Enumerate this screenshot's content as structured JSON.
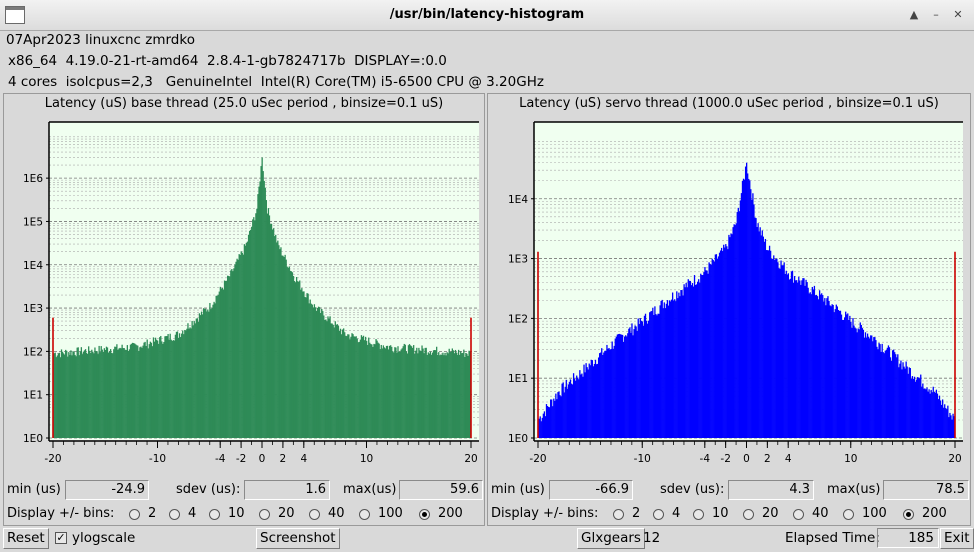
{
  "window": {
    "title": "/usr/bin/latency-histogram"
  },
  "info": {
    "line1": "07Apr2023 linuxcnc zmrdko",
    "line2": "x86_64  4.19.0-21-rt-amd64  2.8.4-1-gb7824717b  DISPLAY=:0.0",
    "line3": "4 cores  isolcpus=2,3   GenuineIntel  Intel(R) Core(TM) i5-6500 CPU @ 3.20GHz"
  },
  "left": {
    "title": "Latency (uS) base thread (25.0 uSec period , binsize=0.1 uS)",
    "min_label": "min (us)",
    "min": "-24.9",
    "sdev_label": "sdev (us):",
    "sdev": "1.6",
    "max_label": "max(us)",
    "max": "59.6",
    "bins_label": "Display +/- bins:",
    "bins_options": [
      "2",
      "4",
      "10",
      "20",
      "40",
      "100",
      "200"
    ],
    "bins_selected": "200"
  },
  "right": {
    "title": "Latency (uS) servo thread (1000.0 uSec period , binsize=0.1 uS)",
    "min_label": "min (us)",
    "min": "-66.9",
    "sdev_label": "sdev (us):",
    "sdev": "4.3",
    "max_label": "max(us)",
    "max": "78.5",
    "bins_label": "Display +/- bins:",
    "bins_options": [
      "2",
      "4",
      "10",
      "20",
      "40",
      "100",
      "200"
    ],
    "bins_selected": "200"
  },
  "bottom": {
    "reset": "Reset",
    "ylogscale": "ylogscale",
    "ylogscale_checked": true,
    "screenshot": "Screenshot",
    "glxgears": "Glxgears",
    "glxgears_count": "12",
    "elapsed_label": "Elapsed Time:",
    "elapsed": "185",
    "exit": "Exit"
  },
  "chart_data": [
    {
      "type": "bar",
      "title": "Latency (uS) base thread (25.0 uSec period , binsize=0.1 uS)",
      "color": "#2e8b57",
      "ylog": true,
      "yticks": [
        "1E0",
        "1E1",
        "1E2",
        "1E3",
        "1E4",
        "1E5",
        "1E6"
      ],
      "xticks": [
        "-20",
        "-10",
        "-4",
        "-2",
        "0",
        "2",
        "4",
        "10",
        "20"
      ],
      "xlim": [
        -20,
        20
      ],
      "ylim": [
        1,
        3000000
      ],
      "peak_x": 0,
      "peak_y": 3000000,
      "edge_left_y": 600,
      "edge_right_y": 600,
      "profile": [
        [
          -20,
          90
        ],
        [
          -12,
          130
        ],
        [
          -8,
          250
        ],
        [
          -5,
          1100
        ],
        [
          -3,
          6000
        ],
        [
          -1.5,
          30000
        ],
        [
          -0.5,
          200000
        ],
        [
          0,
          3000000
        ],
        [
          0.5,
          200000
        ],
        [
          1.5,
          30000
        ],
        [
          3,
          6000
        ],
        [
          5,
          1100
        ],
        [
          8,
          250
        ],
        [
          12,
          130
        ],
        [
          20,
          90
        ]
      ]
    },
    {
      "type": "bar",
      "title": "Latency (uS) servo thread (1000.0 uSec period , binsize=0.1 uS)",
      "color": "#0000ff",
      "ylog": true,
      "yticks": [
        "1E0",
        "1E1",
        "1E2",
        "1E3",
        "1E4"
      ],
      "xticks": [
        "-20",
        "-10",
        "-4",
        "-2",
        "0",
        "2",
        "4",
        "10",
        "20"
      ],
      "xlim": [
        -20,
        20
      ],
      "ylim": [
        1,
        40000
      ],
      "peak_x": 0,
      "peak_y": 40000,
      "edge_left_y": 1300,
      "edge_right_y": 1300,
      "profile": [
        [
          -20,
          2
        ],
        [
          -18,
          6
        ],
        [
          -16,
          12
        ],
        [
          -14,
          25
        ],
        [
          -12,
          50
        ],
        [
          -10,
          90
        ],
        [
          -8,
          180
        ],
        [
          -6,
          330
        ],
        [
          -4,
          600
        ],
        [
          -2,
          1500
        ],
        [
          -1,
          4000
        ],
        [
          0,
          40000
        ],
        [
          1,
          4000
        ],
        [
          2,
          1500
        ],
        [
          4,
          600
        ],
        [
          6,
          330
        ],
        [
          8,
          180
        ],
        [
          10,
          90
        ],
        [
          12,
          50
        ],
        [
          14,
          25
        ],
        [
          16,
          12
        ],
        [
          18,
          6
        ],
        [
          20,
          2
        ]
      ]
    }
  ]
}
